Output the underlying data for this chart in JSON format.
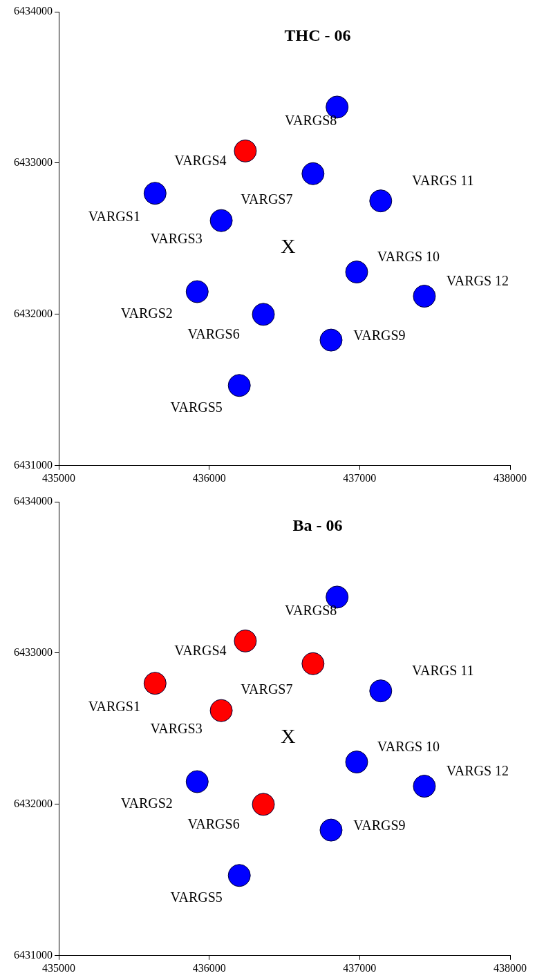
{
  "chart_data": [
    {
      "type": "scatter",
      "title": "THC - 06",
      "xlim": [
        435000,
        438000
      ],
      "xticks": [
        435000,
        436000,
        437000,
        438000
      ],
      "ylim": [
        6431000,
        6434000
      ],
      "yticks": [
        6431000,
        6432000,
        6433000,
        6434000
      ],
      "grid": false,
      "legend": false,
      "marker": "circle",
      "series": [
        {
          "x": [
            435640,
            435920,
            436080,
            436240,
            436200,
            436360,
            436690,
            436850,
            436810,
            436980,
            437140,
            437430
          ],
          "values": [
            6432800,
            6432150,
            6432620,
            6433080,
            6431530,
            6432000,
            6432930,
            6433370,
            6431830,
            6432280,
            6432750,
            6432120
          ],
          "colors": [
            "#0000ff",
            "#0000ff",
            "#0000ff",
            "#ff0000",
            "#0000ff",
            "#0000ff",
            "#0000ff",
            "#0000ff",
            "#0000ff",
            "#0000ff",
            "#0000ff",
            "#0000ff"
          ]
        }
      ],
      "annotations": [
        {
          "text": "VARGS1",
          "x": 435640,
          "y": 6432800
        },
        {
          "text": "VARGS2",
          "x": 435920,
          "y": 6432150
        },
        {
          "text": "VARGS3",
          "x": 436080,
          "y": 6432620
        },
        {
          "text": "VARGS4",
          "x": 436240,
          "y": 6433080
        },
        {
          "text": "VARGS5",
          "x": 436200,
          "y": 6431530
        },
        {
          "text": "VARGS6",
          "x": 436360,
          "y": 6432000
        },
        {
          "text": "VARGS7",
          "x": 436690,
          "y": 6432930
        },
        {
          "text": "VARGS8",
          "x": 436850,
          "y": 6433370
        },
        {
          "text": "VARGS9",
          "x": 436810,
          "y": 6431830
        },
        {
          "text": "VARGS 10",
          "x": 436980,
          "y": 6432280
        },
        {
          "text": "VARGS 11",
          "x": 437140,
          "y": 6432750
        },
        {
          "text": "VARGS 12",
          "x": 437430,
          "y": 6432120
        },
        "X"
      ]
    },
    {
      "type": "scatter",
      "title": "Ba - 06",
      "xlim": [
        435000,
        438000
      ],
      "xticks": [
        435000,
        436000,
        437000,
        438000
      ],
      "ylim": [
        6431000,
        6434000
      ],
      "yticks": [
        6431000,
        6432000,
        6433000,
        6434000
      ],
      "grid": false,
      "legend": false,
      "marker": "circle",
      "series": [
        {
          "x": [
            435640,
            435920,
            436080,
            436240,
            436200,
            436360,
            436690,
            436850,
            436810,
            436980,
            437140,
            437430
          ],
          "values": [
            6432800,
            6432150,
            6432620,
            6433080,
            6431530,
            6432000,
            6432930,
            6433370,
            6431830,
            6432280,
            6432750,
            6432120
          ],
          "colors": [
            "#ff0000",
            "#0000ff",
            "#ff0000",
            "#ff0000",
            "#0000ff",
            "#ff0000",
            "#ff0000",
            "#0000ff",
            "#0000ff",
            "#0000ff",
            "#0000ff",
            "#0000ff"
          ]
        }
      ],
      "annotations": [
        {
          "text": "VARGS1",
          "x": 435640,
          "y": 6432800
        },
        {
          "text": "VARGS2",
          "x": 435920,
          "y": 6432150
        },
        {
          "text": "VARGS3",
          "x": 436080,
          "y": 6432620
        },
        {
          "text": "VARGS4",
          "x": 436240,
          "y": 6433080
        },
        {
          "text": "VARGS5",
          "x": 436200,
          "y": 6431530
        },
        {
          "text": "VARGS6",
          "x": 436360,
          "y": 6432000
        },
        {
          "text": "VARGS7",
          "x": 436690,
          "y": 6432930
        },
        {
          "text": "VARGS8",
          "x": 436850,
          "y": 6433370
        },
        {
          "text": "VARGS9",
          "x": 436810,
          "y": 6431830
        },
        {
          "text": "VARGS 10",
          "x": 436980,
          "y": 6432280
        },
        {
          "text": "VARGS 11",
          "x": 437140,
          "y": 6432750
        },
        {
          "text": "VARGS 12",
          "x": 437430,
          "y": 6432120
        },
        "X"
      ]
    }
  ]
}
